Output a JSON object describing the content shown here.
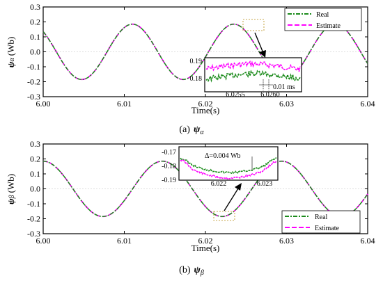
{
  "colors": {
    "real": "#1a8a1a",
    "estimate": "#ff00ff",
    "highlight": "#b58a10"
  },
  "chart_data": [
    {
      "type": "line",
      "caption_prefix": "(a)",
      "caption_symbol": "ψ",
      "caption_sub": "α",
      "ylabel_symbol": "ψ",
      "ylabel_sub": "α",
      "ylabel_unit": "(Wb)",
      "xlabel": "Time(s)",
      "xlim": [
        6.0,
        6.04
      ],
      "ylim": [
        -0.3,
        0.3
      ],
      "xticks": [
        "6.00",
        "6.01",
        "6.02",
        "6.03",
        "6.04"
      ],
      "yticks": [
        "0.3",
        "0.2",
        "0.1",
        "0.0",
        "-0.1",
        "-0.2",
        "-0.3"
      ],
      "wave": {
        "amplitude": 0.185,
        "frequency_hz": 80,
        "peak_time": 6.011
      },
      "series": [
        {
          "name": "Real",
          "style": "dash-dot"
        },
        {
          "name": "Estimate",
          "style": "dashed"
        }
      ],
      "legend_position": "top-right",
      "inset": {
        "xticks": [
          "6.0255",
          "6.0260"
        ],
        "yticks": [
          "0.19",
          "0.18"
        ],
        "annotation": "0.01 ms"
      }
    },
    {
      "type": "line",
      "caption_prefix": "(b)",
      "caption_symbol": "ψ",
      "caption_sub": "β",
      "ylabel_symbol": "ψ",
      "ylabel_sub": "β",
      "ylabel_unit": "(Wb)",
      "xlabel": "Time(s)",
      "xlim": [
        6.0,
        6.04
      ],
      "ylim": [
        -0.3,
        0.3
      ],
      "xticks": [
        "6.00",
        "6.01",
        "6.02",
        "6.03",
        "6.04"
      ],
      "yticks": [
        "0.3",
        "0.2",
        "0.1",
        "0.0",
        "-0.1",
        "-0.2",
        "-0.3"
      ],
      "wave": {
        "amplitude": 0.185,
        "frequency_hz": 68,
        "peak_time": 6.0147
      },
      "series": [
        {
          "name": "Real",
          "style": "dash-dot"
        },
        {
          "name": "Estimate",
          "style": "dashed"
        }
      ],
      "legend_position": "bottom-right",
      "inset": {
        "xticks": [
          "6.022",
          "6.023"
        ],
        "yticks": [
          "-0.17",
          "-0.18",
          "-0.19"
        ],
        "annotation": "Δ=0.004 Wb"
      }
    }
  ]
}
